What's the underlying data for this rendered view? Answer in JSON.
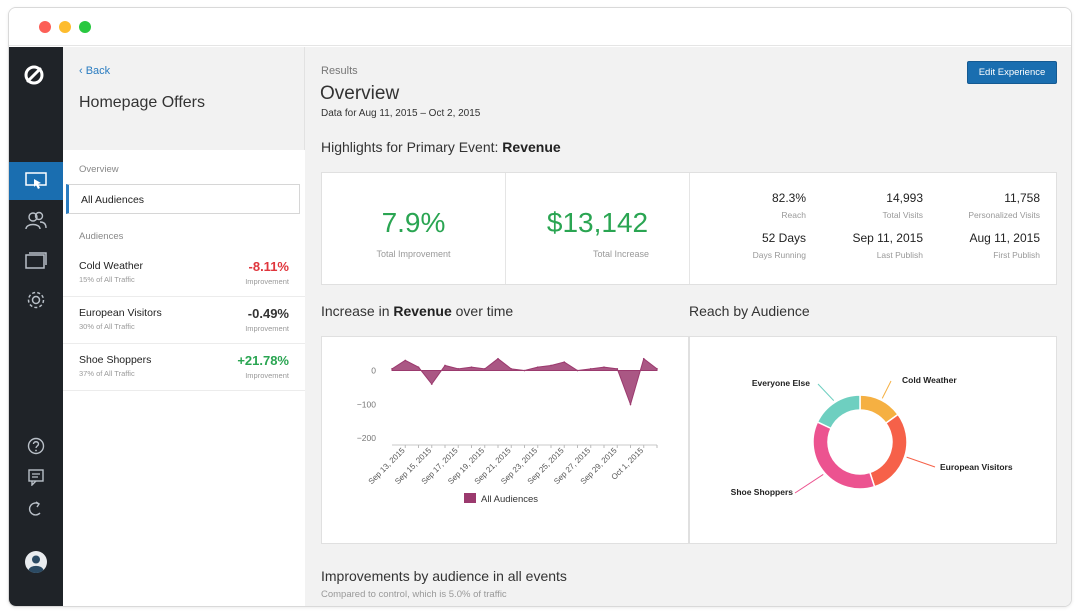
{
  "window": {
    "controls": [
      "close",
      "minimize",
      "maximize"
    ]
  },
  "rail": {
    "logo": "optimizely-logo-icon",
    "items": [
      {
        "name": "experiments-icon",
        "active": true
      },
      {
        "name": "audiences-icon",
        "active": false
      },
      {
        "name": "pages-icon",
        "active": false
      },
      {
        "name": "settings-icon",
        "active": false
      },
      {
        "name": "help-icon",
        "active": false
      },
      {
        "name": "feedback-icon",
        "active": false
      },
      {
        "name": "refresh-icon",
        "active": false
      },
      {
        "name": "profile-avatar-icon",
        "active": false
      }
    ]
  },
  "subnav": {
    "back_label": "‹ Back",
    "title": "Homepage Offers",
    "overview_label": "Overview",
    "all_audiences_label": "All Audiences",
    "audiences_label": "Audiences",
    "audiences": [
      {
        "name": "Cold Weather",
        "traffic": "15% of All Traffic",
        "value": "-8.11%",
        "meta": "Improvement",
        "tone": "neg"
      },
      {
        "name": "European Visitors",
        "traffic": "30% of All Traffic",
        "value": "-0.49%",
        "meta": "Improvement",
        "tone": "neu"
      },
      {
        "name": "Shoe Shoppers",
        "traffic": "37% of All Traffic",
        "value": "+21.78%",
        "meta": "Improvement",
        "tone": "pos"
      }
    ]
  },
  "main": {
    "crumb": "Results",
    "title": "Overview",
    "date_range": "Data for Aug 11, 2015 – Oct 2, 2015",
    "edit_button": "Edit Experience",
    "highlights_heading_prefix": "Highlights for Primary Event: ",
    "highlights_heading_event": "Revenue",
    "total_improvement": {
      "value": "7.9%",
      "label": "Total Improvement"
    },
    "total_increase": {
      "value": "$13,142",
      "label": "Total Increase"
    },
    "stats": [
      {
        "value": "82.3%",
        "label": "Reach"
      },
      {
        "value": "14,993",
        "label": "Total Visits"
      },
      {
        "value": "11,758",
        "label": "Personalized Visits"
      },
      {
        "value": "52 Days",
        "label": "Days Running"
      },
      {
        "value": "Sep 11, 2015",
        "label": "Last Publish"
      },
      {
        "value": "Aug 11, 2015",
        "label": "First Publish"
      }
    ],
    "revenue_heading_prefix": "Increase in ",
    "revenue_heading_event": "Revenue",
    "revenue_heading_suffix": " over time",
    "reach_heading": "Reach by Audience",
    "improvements_heading": "Improvements by audience in all events",
    "improvements_sub": "Compared to control, which is 5.0% of traffic"
  },
  "chart_data": [
    {
      "type": "area",
      "title": "Increase in Revenue over time",
      "y_ticks": [
        "0",
        "−100",
        "−200"
      ],
      "ylim": [
        -220,
        40
      ],
      "x_ticks": [
        "Sep 13, 2015",
        "Sep 15, 2015",
        "Sep 17, 2015",
        "Sep 19, 2015",
        "Sep 21, 2015",
        "Sep 23, 2015",
        "Sep 25, 2015",
        "Sep 27, 2015",
        "Sep 29, 2015",
        "Oct 1, 2015"
      ],
      "x": [
        "Sep 12, 2015",
        "Sep 13, 2015",
        "Sep 14, 2015",
        "Sep 15, 2015",
        "Sep 16, 2015",
        "Sep 17, 2015",
        "Sep 18, 2015",
        "Sep 19, 2015",
        "Sep 20, 2015",
        "Sep 21, 2015",
        "Sep 22, 2015",
        "Sep 23, 2015",
        "Sep 24, 2015",
        "Sep 25, 2015",
        "Sep 26, 2015",
        "Sep 27, 2015",
        "Sep 28, 2015",
        "Sep 29, 2015",
        "Sep 30, 2015",
        "Oct 1, 2015",
        "Oct 2, 2015"
      ],
      "series": [
        {
          "name": "All Audiences",
          "color": "#9b3a6e",
          "values": [
            5,
            30,
            10,
            -40,
            15,
            5,
            10,
            5,
            35,
            5,
            0,
            10,
            15,
            25,
            0,
            5,
            10,
            5,
            -100,
            35,
            5
          ]
        }
      ],
      "legend": "bottom-center",
      "grid": false
    },
    {
      "type": "pie",
      "title": "Reach by Audience",
      "donut": true,
      "categories": [
        "Cold Weather",
        "European Visitors",
        "Shoe Shoppers",
        "Everyone Else"
      ],
      "values": [
        15,
        30,
        37,
        18
      ],
      "colors": [
        "#f5b042",
        "#f66149",
        "#ec5390",
        "#6ecfc0"
      ],
      "legend": "labels-outside"
    }
  ]
}
